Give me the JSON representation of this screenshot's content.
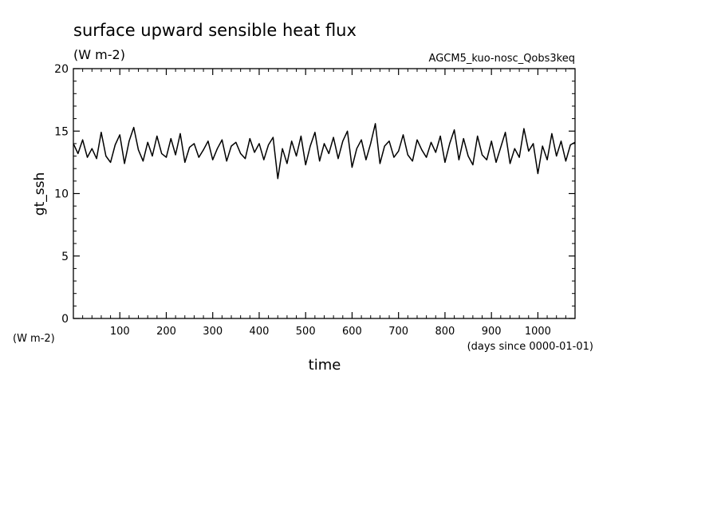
{
  "chart_data": {
    "type": "line",
    "title": "surface upward sensible heat flux",
    "units_label": "(W m-2)",
    "run_label": "AGCM5_kuo-nosc_Qobs3keq",
    "ylabel": "gt_ssh",
    "y_units_label": "(W m-2)",
    "xlabel": "time",
    "x_units_label": "(days since 0000-01-01)",
    "xlim": [
      0,
      1080
    ],
    "ylim": [
      0,
      20
    ],
    "x_ticks": [
      100,
      200,
      300,
      400,
      500,
      600,
      700,
      800,
      900,
      1000
    ],
    "x_tick_labels": [
      "100",
      "200",
      "300",
      "400",
      "500",
      "600",
      "700",
      "800",
      "900",
      "1000"
    ],
    "y_ticks": [
      0,
      5,
      10,
      15,
      20
    ],
    "y_tick_labels": [
      "0",
      "5",
      "10",
      "15",
      "20"
    ],
    "grid": false,
    "line_color": "#000000",
    "series": [
      {
        "x": [
          0,
          10,
          20,
          30,
          40,
          50,
          60,
          70,
          80,
          90,
          100,
          110,
          120,
          130,
          140,
          150,
          160,
          170,
          180,
          190,
          200,
          210,
          220,
          230,
          240,
          250,
          260,
          270,
          280,
          290,
          300,
          310,
          320,
          330,
          340,
          350,
          360,
          370,
          380,
          390,
          400,
          410,
          420,
          430,
          440,
          450,
          460,
          470,
          480,
          490,
          500,
          510,
          520,
          530,
          540,
          550,
          560,
          570,
          580,
          590,
          600,
          610,
          620,
          630,
          640,
          650,
          660,
          670,
          680,
          690,
          700,
          710,
          720,
          730,
          740,
          750,
          760,
          770,
          780,
          790,
          800,
          810,
          820,
          830,
          840,
          850,
          860,
          870,
          880,
          890,
          900,
          910,
          920,
          930,
          940,
          950,
          960,
          970,
          980,
          990,
          1000,
          1010,
          1020,
          1030,
          1040,
          1050,
          1060,
          1070,
          1080
        ],
        "values": [
          14.0,
          13.2,
          14.3,
          12.9,
          13.6,
          12.8,
          14.9,
          13.0,
          12.5,
          13.9,
          14.7,
          12.4,
          14.2,
          15.3,
          13.5,
          12.6,
          14.1,
          13.0,
          14.6,
          13.2,
          12.9,
          14.4,
          13.1,
          14.8,
          12.5,
          13.7,
          14.0,
          12.9,
          13.5,
          14.2,
          12.7,
          13.6,
          14.3,
          12.6,
          13.8,
          14.1,
          13.2,
          12.8,
          14.4,
          13.3,
          14.0,
          12.7,
          13.9,
          14.5,
          11.2,
          13.6,
          12.4,
          14.2,
          13.0,
          14.6,
          12.3,
          13.8,
          14.9,
          12.6,
          14.0,
          13.2,
          14.5,
          12.8,
          14.2,
          15.0,
          12.1,
          13.6,
          14.3,
          12.7,
          14.0,
          15.6,
          12.4,
          13.8,
          14.2,
          12.9,
          13.4,
          14.7,
          13.1,
          12.6,
          14.3,
          13.5,
          12.9,
          14.1,
          13.3,
          14.6,
          12.5,
          14.0,
          15.1,
          12.7,
          14.4,
          13.0,
          12.3,
          14.6,
          13.1,
          12.7,
          14.2,
          12.5,
          13.7,
          14.9,
          12.4,
          13.6,
          12.9,
          15.2,
          13.4,
          14.0,
          11.6,
          13.8,
          12.7,
          14.8,
          13.0,
          14.2,
          12.6,
          13.9,
          14.1
        ]
      }
    ]
  }
}
